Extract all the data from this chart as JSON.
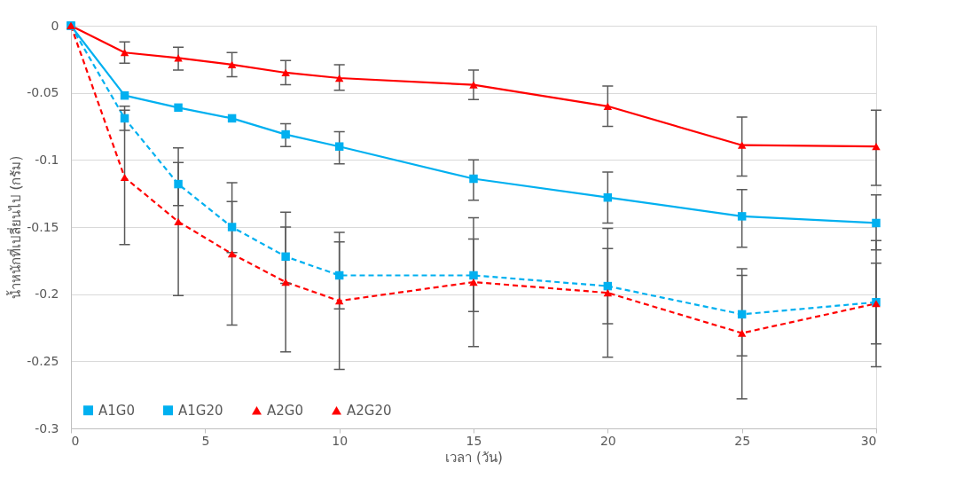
{
  "chart_data": {
    "type": "line",
    "xlabel": "เวลา (วัน)",
    "ylabel": "น้ำหนักที่เปลี่ยนไป (กรัม)",
    "x": [
      0,
      2,
      4,
      6,
      8,
      10,
      15,
      20,
      25,
      30
    ],
    "xlim": [
      0,
      30
    ],
    "xticks": [
      0,
      5,
      10,
      15,
      20,
      25,
      30
    ],
    "ylim": [
      -0.3,
      0
    ],
    "yticks": [
      -0.3,
      -0.25,
      -0.2,
      -0.15,
      -0.1,
      -0.05,
      0
    ],
    "grid": "y",
    "legend": "bottom",
    "series": [
      {
        "name": "A1G0",
        "color": "#00b0f0",
        "marker": "square",
        "line_style": "solid",
        "values": [
          0,
          -0.052,
          -0.061,
          -0.069,
          -0.081,
          -0.09,
          -0.114,
          -0.128,
          -0.142,
          -0.147
        ],
        "errors": [
          null,
          null,
          null,
          null,
          [
            -0.09,
            -0.073
          ],
          [
            -0.103,
            -0.079
          ],
          [
            -0.13,
            -0.1
          ],
          [
            -0.147,
            -0.109
          ],
          [
            -0.165,
            -0.122
          ],
          [
            -0.167,
            -0.126
          ]
        ]
      },
      {
        "name": "A1G20",
        "color": "#00b0f0",
        "marker": "square",
        "line_style": "dashed",
        "values": [
          0,
          -0.069,
          -0.118,
          -0.15,
          -0.172,
          -0.186,
          -0.186,
          -0.194,
          -0.215,
          -0.206
        ],
        "errors": [
          null,
          [
            -0.078,
            -0.06
          ],
          [
            -0.134,
            -0.102
          ],
          [
            -0.169,
            -0.131
          ],
          [
            -0.192,
            -0.15
          ],
          [
            -0.211,
            -0.161
          ],
          [
            -0.213,
            -0.159
          ],
          [
            -0.222,
            -0.166
          ],
          [
            -0.246,
            -0.186
          ],
          [
            -0.237,
            -0.177
          ]
        ]
      },
      {
        "name": "A2G0",
        "color": "#ff0000",
        "marker": "triangle",
        "line_style": "solid",
        "values": [
          0,
          -0.02,
          -0.024,
          -0.029,
          -0.035,
          -0.039,
          -0.044,
          -0.06,
          -0.089,
          -0.09
        ],
        "errors": [
          null,
          [
            -0.028,
            -0.012
          ],
          [
            -0.033,
            -0.016
          ],
          [
            -0.038,
            -0.02
          ],
          [
            -0.044,
            -0.026
          ],
          [
            -0.048,
            -0.029
          ],
          [
            -0.055,
            -0.033
          ],
          [
            -0.075,
            -0.045
          ],
          [
            -0.112,
            -0.068
          ],
          [
            -0.119,
            -0.063
          ]
        ]
      },
      {
        "name": "A2G20",
        "color": "#ff0000",
        "marker": "triangle",
        "line_style": "dashed",
        "values": [
          0,
          -0.113,
          -0.146,
          -0.17,
          -0.191,
          -0.205,
          -0.191,
          -0.199,
          -0.229,
          -0.207
        ],
        "errors": [
          null,
          [
            -0.163,
            -0.063
          ],
          [
            -0.201,
            -0.091
          ],
          [
            -0.223,
            -0.117
          ],
          [
            -0.243,
            -0.139
          ],
          [
            -0.256,
            -0.154
          ],
          [
            -0.239,
            -0.143
          ],
          [
            -0.247,
            -0.151
          ],
          [
            -0.278,
            -0.181
          ],
          [
            -0.254,
            -0.16
          ]
        ]
      }
    ]
  }
}
